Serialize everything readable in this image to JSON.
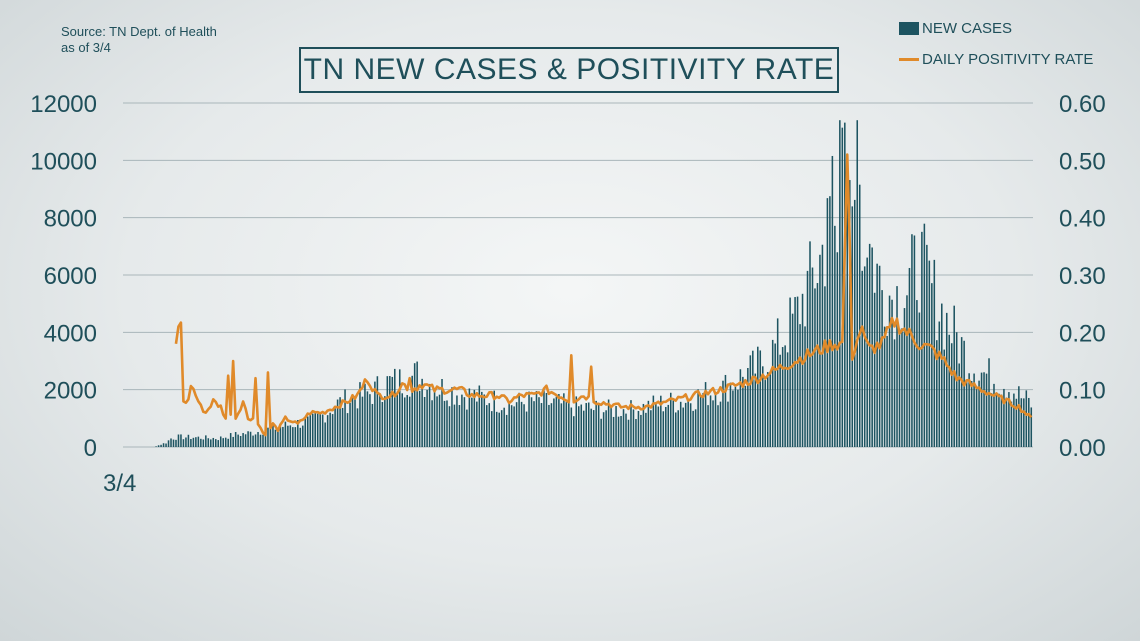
{
  "source": {
    "line1": "Source: TN Dept. of Health",
    "line2": "as of 3/4"
  },
  "chart_data": {
    "type": "bar",
    "title": "TN NEW CASES & POSITIVITY RATE",
    "xlabel": "",
    "ylabel": "",
    "x_tick_labels": [
      "3/4"
    ],
    "ylim": [
      0,
      12000
    ],
    "y2lim": [
      0,
      0.6
    ],
    "y_ticks": [
      "0",
      "2000",
      "4000",
      "6000",
      "8000",
      "10000",
      "12000"
    ],
    "y2_ticks": [
      "0.00",
      "0.10",
      "0.20",
      "0.30",
      "0.40",
      "0.50",
      "0.60"
    ],
    "legend_position": "top-right",
    "grid": true,
    "colors": {
      "bars": "#1d5461",
      "line": "#e08a2a",
      "text": "#1f4f5a",
      "grid": "#a9b6ba"
    },
    "series": [
      {
        "name": "NEW CASES",
        "type": "bar",
        "axis": "left",
        "anchors": [
          [
            0,
            0
          ],
          [
            12,
            0
          ],
          [
            14,
            60
          ],
          [
            17,
            150
          ],
          [
            19,
            300
          ],
          [
            22,
            350
          ],
          [
            30,
            330
          ],
          [
            38,
            300
          ],
          [
            45,
            430
          ],
          [
            52,
            500
          ],
          [
            60,
            650
          ],
          [
            68,
            800
          ],
          [
            75,
            900
          ],
          [
            80,
            1100
          ],
          [
            86,
            1500
          ],
          [
            92,
            1700
          ],
          [
            100,
            1900
          ],
          [
            105,
            2200
          ],
          [
            112,
            2300
          ],
          [
            118,
            2500
          ],
          [
            125,
            2100
          ],
          [
            130,
            2000
          ],
          [
            138,
            1800
          ],
          [
            145,
            1700
          ],
          [
            155,
            1500
          ],
          [
            165,
            1600
          ],
          [
            175,
            1500
          ],
          [
            185,
            1350
          ],
          [
            195,
            1300
          ],
          [
            205,
            1300
          ],
          [
            215,
            1500
          ],
          [
            225,
            1600
          ],
          [
            232,
            1800
          ],
          [
            240,
            2000
          ],
          [
            248,
            2400
          ],
          [
            255,
            2800
          ],
          [
            260,
            3200
          ],
          [
            265,
            3800
          ],
          [
            270,
            4500
          ],
          [
            275,
            5500
          ],
          [
            280,
            6500
          ],
          [
            285,
            8000
          ],
          [
            289,
            9000
          ],
          [
            292,
            10200
          ],
          [
            295,
            9000
          ],
          [
            300,
            7000
          ],
          [
            305,
            5500
          ],
          [
            310,
            5200
          ],
          [
            315,
            5500
          ],
          [
            320,
            6500
          ],
          [
            325,
            5500
          ],
          [
            330,
            4500
          ],
          [
            335,
            3800
          ],
          [
            340,
            3000
          ],
          [
            345,
            2600
          ],
          [
            350,
            2400
          ],
          [
            355,
            2200
          ],
          [
            360,
            1800
          ],
          [
            365,
            1500
          ]
        ],
        "noise": 0.28
      },
      {
        "name": "DAILY POSITIVITY RATE",
        "type": "line",
        "axis": "right",
        "anchors": [
          [
            21,
            0.18
          ],
          [
            22,
            0.06
          ],
          [
            23,
            0.21
          ],
          [
            24,
            0.08
          ],
          [
            26,
            0.08
          ],
          [
            27,
            0.11
          ],
          [
            29,
            0.09
          ],
          [
            31,
            0.07
          ],
          [
            33,
            0.06
          ],
          [
            36,
            0.08
          ],
          [
            39,
            0.07
          ],
          [
            41,
            0.05
          ],
          [
            42,
            0.12
          ],
          [
            43,
            0.06
          ],
          [
            44,
            0.15
          ],
          [
            45,
            0.05
          ],
          [
            48,
            0.08
          ],
          [
            50,
            0.05
          ],
          [
            52,
            0.05
          ],
          [
            53,
            0.12
          ],
          [
            54,
            0.04
          ],
          [
            57,
            0.02
          ],
          [
            60,
            0.04
          ],
          [
            62,
            0.03
          ],
          [
            65,
            0.05
          ],
          [
            70,
            0.04
          ],
          [
            75,
            0.06
          ],
          [
            80,
            0.06
          ],
          [
            85,
            0.07
          ],
          [
            90,
            0.08
          ],
          [
            94,
            0.09
          ],
          [
            98,
            0.12
          ],
          [
            102,
            0.09
          ],
          [
            108,
            0.09
          ],
          [
            112,
            0.11
          ],
          [
            116,
            0.1
          ],
          [
            120,
            0.11
          ],
          [
            125,
            0.1
          ],
          [
            130,
            0.1
          ],
          [
            135,
            0.1
          ],
          [
            140,
            0.09
          ],
          [
            145,
            0.09
          ],
          [
            150,
            0.09
          ],
          [
            155,
            0.08
          ],
          [
            160,
            0.09
          ],
          [
            165,
            0.09
          ],
          [
            170,
            0.1
          ],
          [
            175,
            0.09
          ],
          [
            180,
            0.08
          ],
          [
            185,
            0.09
          ],
          [
            190,
            0.08
          ],
          [
            200,
            0.07
          ],
          [
            210,
            0.07
          ],
          [
            220,
            0.08
          ],
          [
            230,
            0.09
          ],
          [
            240,
            0.1
          ],
          [
            248,
            0.11
          ],
          [
            255,
            0.12
          ],
          [
            260,
            0.13
          ],
          [
            265,
            0.14
          ],
          [
            270,
            0.15
          ],
          [
            275,
            0.16
          ],
          [
            280,
            0.17
          ],
          [
            285,
            0.18
          ],
          [
            289,
            0.18
          ],
          [
            291,
            0.51
          ],
          [
            293,
            0.16
          ],
          [
            296,
            0.2
          ],
          [
            300,
            0.17
          ],
          [
            305,
            0.18
          ],
          [
            310,
            0.22
          ],
          [
            315,
            0.2
          ],
          [
            320,
            0.18
          ],
          [
            325,
            0.17
          ],
          [
            330,
            0.15
          ],
          [
            335,
            0.12
          ],
          [
            340,
            0.11
          ],
          [
            345,
            0.1
          ],
          [
            350,
            0.09
          ],
          [
            355,
            0.08
          ],
          [
            360,
            0.07
          ],
          [
            365,
            0.05
          ]
        ],
        "noise": 0.07,
        "spikes": [
          [
            21,
            0.18
          ],
          [
            22,
            0.21
          ],
          [
            44,
            0.15
          ],
          [
            53,
            0.12
          ],
          [
            58,
            0.13
          ],
          [
            115,
            0.12
          ],
          [
            180,
            0.16
          ],
          [
            188,
            0.14
          ],
          [
            291,
            0.51
          ],
          [
            297,
            0.21
          ]
        ]
      }
    ]
  }
}
